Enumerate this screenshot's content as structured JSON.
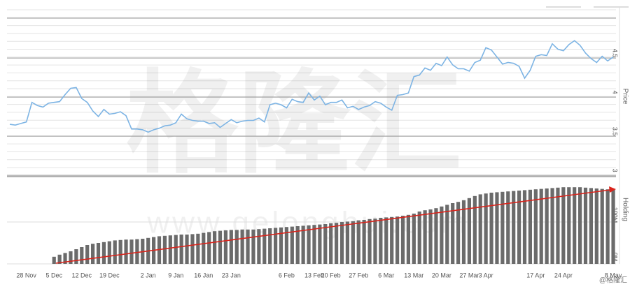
{
  "chart_data": {
    "type": "combo",
    "watermark": "格隆汇",
    "watermark_url": "www.gelonghui.com",
    "credit": "@格隆汇",
    "ylabel": "Price",
    "y2label": "Holding",
    "categories": [
      null,
      null,
      null,
      "28 Nov",
      null,
      null,
      null,
      null,
      "5 Dec",
      null,
      null,
      null,
      null,
      "12 Dec",
      null,
      null,
      null,
      null,
      "19 Dec",
      null,
      null,
      null,
      null,
      null,
      null,
      "2 Jan",
      null,
      null,
      null,
      null,
      "9 Jan",
      null,
      null,
      null,
      null,
      "16 Jan",
      null,
      null,
      null,
      null,
      "23 Jan",
      null,
      null,
      null,
      null,
      null,
      null,
      null,
      null,
      null,
      "6 Feb",
      null,
      null,
      null,
      null,
      "13 Feb",
      null,
      null,
      "20 Feb",
      null,
      null,
      null,
      null,
      "27 Feb",
      null,
      null,
      null,
      null,
      "6 Mar",
      null,
      null,
      null,
      null,
      "13 Mar",
      null,
      null,
      null,
      null,
      "20 Mar",
      null,
      null,
      null,
      null,
      "27 Mar",
      null,
      null,
      "3 Apr",
      null,
      null,
      null,
      null,
      null,
      null,
      null,
      null,
      "17 Apr",
      null,
      null,
      null,
      null,
      "24 Apr",
      null,
      null,
      null,
      null,
      null,
      null,
      null,
      null,
      "8 May"
    ],
    "series": [
      {
        "name": "Price",
        "type": "line",
        "color": "#7db4e4",
        "values": [
          3.59,
          3.58,
          3.6,
          3.62,
          3.87,
          3.83,
          3.81,
          3.86,
          3.87,
          3.88,
          3.97,
          4.05,
          4.06,
          3.92,
          3.87,
          3.76,
          3.69,
          3.78,
          3.72,
          3.73,
          3.75,
          3.7,
          3.53,
          3.53,
          3.52,
          3.49,
          3.52,
          3.54,
          3.57,
          3.58,
          3.61,
          3.72,
          3.66,
          3.64,
          3.63,
          3.63,
          3.6,
          3.61,
          3.55,
          3.6,
          3.65,
          3.61,
          3.63,
          3.64,
          3.64,
          3.67,
          3.62,
          3.84,
          3.86,
          3.84,
          3.8,
          3.91,
          3.88,
          3.87,
          3.99,
          3.9,
          3.95,
          3.84,
          3.87,
          3.87,
          3.9,
          3.8,
          3.82,
          3.78,
          3.81,
          3.83,
          3.88,
          3.86,
          3.81,
          3.77,
          3.96,
          3.97,
          3.99,
          4.2,
          4.22,
          4.31,
          4.28,
          4.37,
          4.34,
          4.45,
          4.35,
          4.3,
          4.3,
          4.27,
          4.38,
          4.41,
          4.57,
          4.54,
          4.45,
          4.36,
          4.38,
          4.37,
          4.33,
          4.18,
          4.28,
          4.46,
          4.48,
          4.47,
          4.62,
          4.55,
          4.53,
          4.61,
          4.66,
          4.6,
          4.5,
          4.43,
          4.38,
          4.46,
          4.4,
          4.45
        ]
      },
      {
        "name": "Holding",
        "type": "bar",
        "axis": "y2",
        "color": "#6b6b6b",
        "values": [
          null,
          null,
          null,
          null,
          null,
          null,
          null,
          null,
          17,
          22,
          26,
          30,
          35,
          40,
          45,
          48,
          50,
          52,
          54,
          56,
          57,
          58,
          58,
          59,
          60,
          62,
          64,
          66,
          67,
          68,
          69,
          70,
          70,
          71,
          72,
          74,
          76,
          78,
          79,
          80,
          81,
          81,
          82,
          82,
          82,
          83,
          84,
          85,
          86,
          87,
          88,
          89,
          90,
          91,
          92,
          93,
          94,
          95,
          97,
          98,
          100,
          101,
          102,
          104,
          105,
          107,
          108,
          110,
          111,
          112,
          113,
          115,
          117,
          120,
          125,
          128,
          130,
          133,
          137,
          141,
          145,
          148,
          152,
          157,
          162,
          166,
          168,
          170,
          171,
          172,
          173,
          174,
          175,
          176,
          177,
          178,
          179,
          180,
          181,
          182,
          183,
          183,
          183,
          183,
          182,
          181,
          180,
          179,
          178,
          177
        ]
      }
    ],
    "ylim": [
      2.93,
      5.09
    ],
    "yticks": [
      3,
      3.5,
      4,
      4.5
    ],
    "y2lim": [
      0,
      200
    ],
    "y2ticks": [
      {
        "value": 0,
        "label": "0M"
      },
      {
        "value": 100,
        "label": "100M"
      }
    ],
    "grid": true
  }
}
